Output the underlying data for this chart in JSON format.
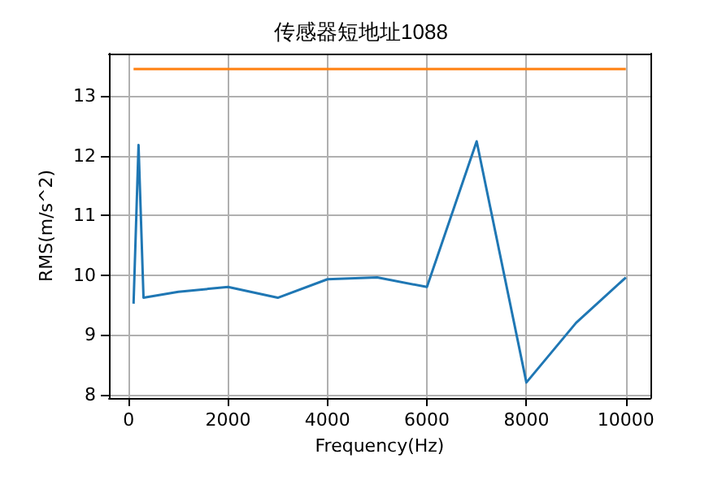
{
  "chart_data": {
    "type": "line",
    "title": "传感器短地址1088",
    "xlabel": "Frequency(Hz)",
    "ylabel": "RMS(m/s^2)",
    "series": [
      {
        "color": "#1f77b4",
        "x": [
          100,
          200,
          300,
          1000,
          2000,
          3000,
          4000,
          5000,
          6000,
          7000,
          8000,
          9000,
          10000
        ],
        "values": [
          9.52,
          12.18,
          9.62,
          9.72,
          9.8,
          9.62,
          9.93,
          9.96,
          9.8,
          12.24,
          8.2,
          9.2,
          9.96
        ]
      },
      {
        "color": "#ff7f0e",
        "x": [
          100,
          10000
        ],
        "values": [
          13.45,
          13.45
        ]
      }
    ],
    "xlim": [
      -395,
      10495
    ],
    "ylim": [
      7.94,
      13.71
    ],
    "xticks": [
      0,
      2000,
      4000,
      6000,
      8000,
      10000
    ],
    "yticks": [
      8,
      9,
      10,
      11,
      12,
      13
    ],
    "grid": true,
    "marker": "none",
    "line_style": "solid"
  }
}
